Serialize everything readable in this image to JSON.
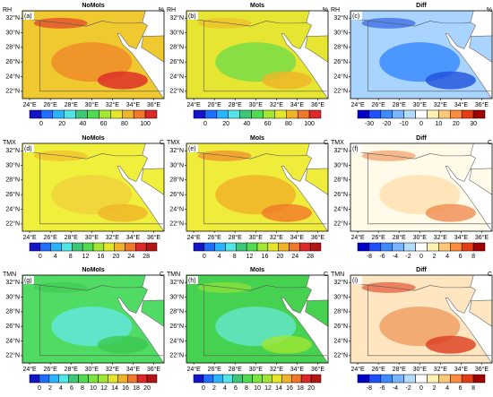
{
  "panels": [
    {
      "title": "NoMoIs",
      "variable": "RH",
      "unit": "%",
      "tag": "(a)",
      "fill": "#f0c830",
      "accent": "#f08c28",
      "accent2": "#dc2828",
      "palette": "rh",
      "ticks": [
        0,
        20,
        40,
        60,
        80,
        100
      ]
    },
    {
      "title": "MoIs",
      "variable": "RH",
      "unit": "%",
      "tag": "(b)",
      "fill": "#e6e632",
      "accent": "#78dc46",
      "accent2": "#f0b428",
      "palette": "rh",
      "ticks": [
        0,
        20,
        40,
        60,
        80,
        100
      ]
    },
    {
      "title": "Diff",
      "variable": "RH",
      "unit": "%",
      "tag": "(c)",
      "fill": "#a8d4ff",
      "accent": "#3c8cff",
      "accent2": "#1e50dc",
      "palette": "diff",
      "ticks": [
        -30,
        -20,
        -10,
        0,
        10,
        20,
        30
      ]
    },
    {
      "title": "NoMoIs",
      "variable": "TMX",
      "unit": "C",
      "tag": "(d)",
      "fill": "#f0f03c",
      "accent": "#f0d23c",
      "accent2": "#f0b428",
      "palette": "tmx",
      "ticks": [
        0,
        4,
        8,
        12,
        16,
        20,
        24,
        28
      ]
    },
    {
      "title": "MoIs",
      "variable": "TMX",
      "unit": "C",
      "tag": "(e)",
      "fill": "#f0ec3c",
      "accent": "#f0b428",
      "accent2": "#f07828",
      "palette": "tmx",
      "ticks": [
        0,
        4,
        8,
        12,
        16,
        20,
        24,
        28
      ]
    },
    {
      "title": "Diff",
      "variable": "TMX",
      "unit": "C",
      "tag": "(f)",
      "fill": "#fffbe8",
      "accent": "#ffe0b0",
      "accent2": "#f08c50",
      "palette": "diff",
      "ticks": [
        -8,
        -6,
        -4,
        -2,
        0,
        2,
        4,
        6,
        8
      ]
    },
    {
      "title": "NoMoIs",
      "variable": "TMN",
      "unit": "C",
      "tag": "(g)",
      "fill": "#50dc64",
      "accent": "#64e6dc",
      "accent2": "#3cc850",
      "palette": "tmn",
      "ticks": [
        0,
        2,
        4,
        6,
        8,
        10,
        12,
        14,
        16,
        18,
        20
      ]
    },
    {
      "title": "MoIs",
      "variable": "TMN",
      "unit": "C",
      "tag": "(h)",
      "fill": "#46d250",
      "accent": "#64e6c8",
      "accent2": "#a0e632",
      "palette": "tmn",
      "ticks": [
        0,
        2,
        4,
        6,
        8,
        10,
        12,
        14,
        16,
        18,
        20
      ]
    },
    {
      "title": "Diff",
      "variable": "TMN",
      "unit": "C",
      "tag": "(i)",
      "fill": "#ffe6c0",
      "accent": "#f0a064",
      "accent2": "#dc3c1e",
      "palette": "diff",
      "ticks": [
        -8,
        -6,
        -4,
        -2,
        0,
        2,
        4,
        6,
        8
      ]
    }
  ],
  "lat_labels": [
    "32°N",
    "30°N",
    "28°N",
    "26°N",
    "24°N",
    "22°N"
  ],
  "lon_labels": [
    "24°E",
    "26°E",
    "28°E",
    "30°E",
    "32°E",
    "34°E",
    "36°E"
  ],
  "palettes": {
    "rh": [
      "#1414c8",
      "#1e6eff",
      "#28b4ff",
      "#50e6e6",
      "#3cc878",
      "#50dc50",
      "#a0e632",
      "#e6e628",
      "#f0b428",
      "#f07828",
      "#dc2828"
    ],
    "tmx": [
      "#1414c8",
      "#1e6eff",
      "#28b4ff",
      "#50e6e6",
      "#3cc878",
      "#50dc50",
      "#a0e632",
      "#e6e628",
      "#f0b428",
      "#f07828",
      "#dc2828",
      "#b41414"
    ],
    "tmn": [
      "#1414c8",
      "#1e6eff",
      "#28b4ff",
      "#50e6e6",
      "#3cc878",
      "#50dc50",
      "#78e63c",
      "#a0e632",
      "#e6e628",
      "#f0b428",
      "#f07828",
      "#dc2828",
      "#b41414"
    ],
    "diff": [
      "#0000c8",
      "#1e50ff",
      "#3c8cff",
      "#78b4ff",
      "#b4dcff",
      "#ffffff",
      "#fff0b4",
      "#ffc878",
      "#ff8c3c",
      "#e63c14",
      "#a00000"
    ]
  }
}
